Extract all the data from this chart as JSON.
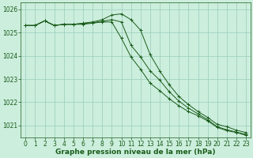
{
  "x": [
    0,
    1,
    2,
    3,
    4,
    5,
    6,
    7,
    8,
    9,
    10,
    11,
    12,
    13,
    14,
    15,
    16,
    17,
    18,
    19,
    20,
    21,
    22,
    23
  ],
  "line1": [
    1025.3,
    1025.3,
    1025.5,
    1025.3,
    1025.35,
    1025.35,
    1025.4,
    1025.45,
    1025.55,
    1025.75,
    1025.8,
    1025.55,
    1025.1,
    1024.05,
    1023.35,
    1022.75,
    1022.25,
    1021.9,
    1021.6,
    1021.35,
    1021.05,
    1020.95,
    1020.8,
    1020.7
  ],
  "line2": [
    1025.3,
    1025.3,
    1025.5,
    1025.3,
    1025.35,
    1025.35,
    1025.38,
    1025.42,
    1025.48,
    1025.55,
    1025.45,
    1024.45,
    1023.95,
    1023.35,
    1022.95,
    1022.45,
    1022.05,
    1021.75,
    1021.5,
    1021.25,
    1020.95,
    1020.82,
    1020.72,
    1020.62
  ],
  "line3": [
    1025.3,
    1025.3,
    1025.5,
    1025.3,
    1025.35,
    1025.35,
    1025.35,
    1025.4,
    1025.45,
    1025.45,
    1024.75,
    1023.95,
    1023.42,
    1022.82,
    1022.5,
    1022.15,
    1021.85,
    1021.6,
    1021.42,
    1021.2,
    1020.92,
    1020.78,
    1020.7,
    1020.58
  ],
  "line_color": "#1a5c1a",
  "bg_color": "#cceedd",
  "grid_color": "#99ccbb",
  "xlabel": "Graphe pression niveau de la mer (hPa)",
  "ylim": [
    1020.5,
    1026.3
  ],
  "xlim": [
    -0.5,
    23.5
  ],
  "yticks": [
    1021,
    1022,
    1023,
    1024,
    1025,
    1026
  ],
  "xticks": [
    0,
    1,
    2,
    3,
    4,
    5,
    6,
    7,
    8,
    9,
    10,
    11,
    12,
    13,
    14,
    15,
    16,
    17,
    18,
    19,
    20,
    21,
    22,
    23
  ],
  "tick_fontsize": 5.5,
  "xlabel_fontsize": 6.5,
  "figsize": [
    3.2,
    2.0
  ],
  "dpi": 100
}
